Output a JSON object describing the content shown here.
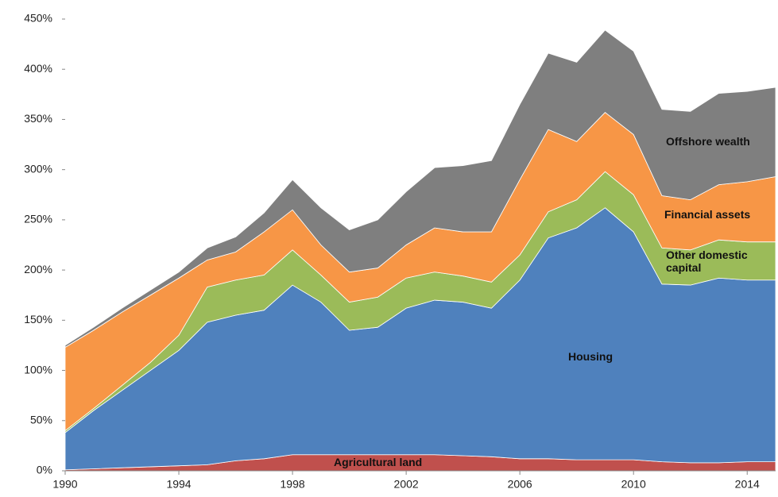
{
  "chart_data": {
    "type": "stacked-area",
    "x": [
      1990,
      1991,
      1992,
      1993,
      1994,
      1995,
      1996,
      1997,
      1998,
      1999,
      2000,
      2001,
      2002,
      2003,
      2004,
      2005,
      2006,
      2007,
      2008,
      2009,
      2010,
      2011,
      2012,
      2013,
      2014,
      2015
    ],
    "series": [
      {
        "name": "Agricultural land",
        "color": "#c0504d",
        "values": [
          1,
          2,
          3,
          4,
          5,
          6,
          10,
          12,
          16,
          16,
          16,
          16,
          16,
          16,
          15,
          14,
          12,
          12,
          11,
          11,
          11,
          9,
          8,
          8,
          9,
          9
        ]
      },
      {
        "name": "Housing",
        "color": "#4f81bd",
        "values": [
          37,
          58,
          77,
          96,
          115,
          142,
          145,
          148,
          169,
          152,
          124,
          127,
          146,
          154,
          153,
          148,
          178,
          220,
          231,
          251,
          227,
          177,
          177,
          184,
          181,
          181
        ]
      },
      {
        "name": "Other domestic capital",
        "color": "#9bbb59",
        "values": [
          2,
          2,
          5,
          8,
          15,
          35,
          35,
          35,
          35,
          27,
          28,
          30,
          30,
          28,
          26,
          26,
          25,
          26,
          28,
          36,
          37,
          36,
          35,
          38,
          38,
          38
        ]
      },
      {
        "name": "Financial assets",
        "color": "#f79646",
        "values": [
          83,
          78,
          73,
          67,
          57,
          27,
          28,
          43,
          40,
          30,
          30,
          29,
          33,
          44,
          44,
          50,
          75,
          82,
          58,
          59,
          60,
          52,
          50,
          55,
          60,
          65
        ]
      },
      {
        "name": "Offshore wealth",
        "color": "#7f7f7f",
        "values": [
          2,
          3,
          4,
          5,
          6,
          12,
          15,
          19,
          30,
          37,
          42,
          48,
          53,
          60,
          66,
          71,
          75,
          76,
          79,
          82,
          83,
          86,
          88,
          91,
          90,
          89
        ]
      }
    ],
    "xlim": [
      1990,
      2015
    ],
    "xticks": [
      1990,
      1994,
      1998,
      2002,
      2006,
      2010,
      2014
    ],
    "ylim": [
      0,
      450
    ],
    "yticks": [
      {
        "value": 0,
        "label": "0%"
      },
      {
        "value": 50,
        "label": "50%"
      },
      {
        "value": 100,
        "label": "100%"
      },
      {
        "value": 150,
        "label": "150%"
      },
      {
        "value": 200,
        "label": "200%"
      },
      {
        "value": 250,
        "label": "250%"
      },
      {
        "value": 300,
        "label": "300%"
      },
      {
        "value": 350,
        "label": "350%"
      },
      {
        "value": 400,
        "label": "400%"
      },
      {
        "value": 450,
        "label": "450%"
      }
    ],
    "grid": false
  }
}
